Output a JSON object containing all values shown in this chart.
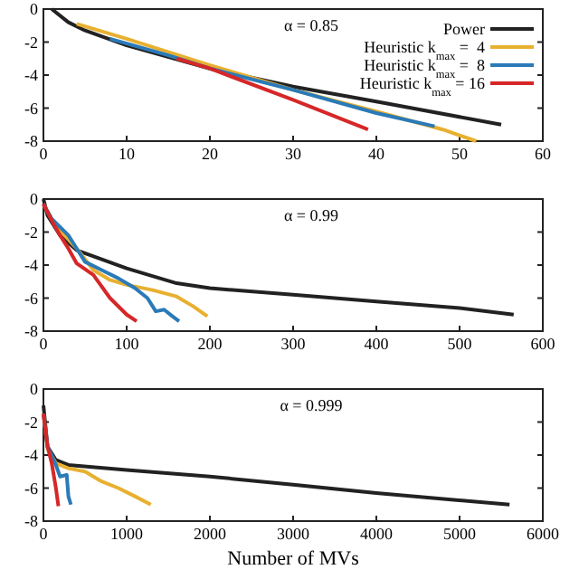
{
  "chart_data": [
    {
      "type": "line",
      "title": "α = 0.85",
      "xlim": [
        0,
        60
      ],
      "xticks": [
        0,
        10,
        20,
        30,
        40,
        50,
        60
      ],
      "ylim": [
        -8,
        0
      ],
      "yticks": [
        -8,
        -6,
        -4,
        -2,
        0
      ],
      "legend": "top right",
      "series": [
        {
          "name": "Power",
          "color": "#222222",
          "x": [
            1,
            3,
            5,
            10,
            20,
            30,
            40,
            55
          ],
          "values": [
            0,
            -0.8,
            -1.3,
            -2.2,
            -3.6,
            -4.7,
            -5.6,
            -7.0
          ]
        },
        {
          "name": "Heuristic k$_{max}$ =  4",
          "color": "#e8b030",
          "x": [
            4,
            10,
            20,
            30,
            40,
            48,
            52
          ],
          "values": [
            -0.9,
            -1.8,
            -3.4,
            -4.9,
            -6.2,
            -7.3,
            -8
          ]
        },
        {
          "name": "Heuristic k$_{max}$ =  8",
          "color": "#2a7ab8",
          "x": [
            8,
            15,
            20,
            30,
            40,
            47
          ],
          "values": [
            -1.8,
            -2.8,
            -3.6,
            -4.9,
            -6.3,
            -7.1
          ]
        },
        {
          "name": "Heuristic k$_{max}$ = 16",
          "color": "#d62728",
          "x": [
            16,
            20,
            30,
            39
          ],
          "values": [
            -3.0,
            -3.6,
            -5.5,
            -7.3
          ]
        }
      ]
    },
    {
      "type": "line",
      "title": "α = 0.99",
      "xlim": [
        0,
        600
      ],
      "xticks": [
        0,
        100,
        200,
        300,
        400,
        500,
        600
      ],
      "ylim": [
        -8,
        0
      ],
      "yticks": [
        -8,
        -6,
        -4,
        -2,
        0
      ],
      "series": [
        {
          "color": "#222222",
          "x": [
            0,
            5,
            20,
            40,
            100,
            160,
            200,
            300,
            400,
            500,
            565
          ],
          "values": [
            0,
            -1,
            -2.2,
            -3.1,
            -4.2,
            -5.1,
            -5.4,
            -5.8,
            -6.2,
            -6.6,
            -7.0
          ]
        },
        {
          "color": "#e8b030",
          "x": [
            0,
            10,
            20,
            40,
            60,
            80,
            100,
            130,
            160,
            180,
            197
          ],
          "values": [
            -0.3,
            -1.2,
            -1.9,
            -3.0,
            -4.3,
            -4.9,
            -5.2,
            -5.5,
            -5.9,
            -6.5,
            -7.1
          ]
        },
        {
          "color": "#2a7ab8",
          "x": [
            0,
            10,
            30,
            40,
            50,
            70,
            90,
            110,
            125,
            135,
            145,
            155,
            163
          ],
          "values": [
            -0.3,
            -1.2,
            -2.2,
            -3,
            -3.8,
            -4.3,
            -4.8,
            -5.4,
            -6.0,
            -6.8,
            -6.7,
            -7.1,
            -7.4
          ]
        },
        {
          "color": "#d62728",
          "x": [
            0,
            10,
            20,
            30,
            40,
            60,
            80,
            100,
            112
          ],
          "values": [
            -0.3,
            -1.3,
            -2.2,
            -3.0,
            -3.9,
            -4.6,
            -6.0,
            -7.0,
            -7.4
          ]
        }
      ]
    },
    {
      "type": "line",
      "title": "α = 0.999",
      "xlabel": "Number of MVs",
      "xlim": [
        0,
        6000
      ],
      "xticks": [
        0,
        1000,
        2000,
        3000,
        4000,
        5000,
        6000
      ],
      "ylim": [
        -8,
        0
      ],
      "yticks": [
        -8,
        -6,
        -4,
        -2,
        0
      ],
      "series": [
        {
          "color": "#222222",
          "x": [
            0,
            50,
            150,
            300,
            1000,
            2000,
            3000,
            4000,
            5600
          ],
          "values": [
            -1,
            -3.5,
            -4.3,
            -4.6,
            -4.9,
            -5.3,
            -5.8,
            -6.3,
            -7.0
          ]
        },
        {
          "color": "#e8b030",
          "x": [
            0,
            50,
            150,
            300,
            500,
            700,
            900,
            1100,
            1290
          ],
          "values": [
            -1.5,
            -3.6,
            -4.5,
            -4.8,
            -5.0,
            -5.6,
            -6.0,
            -6.5,
            -7.0
          ]
        },
        {
          "color": "#2a7ab8",
          "x": [
            0,
            50,
            150,
            200,
            280,
            300,
            330
          ],
          "values": [
            -1.5,
            -3.5,
            -4.6,
            -5.3,
            -5.2,
            -6.5,
            -7.0
          ]
        },
        {
          "color": "#d62728",
          "x": [
            0,
            50,
            100,
            150,
            180
          ],
          "values": [
            -1.5,
            -3.5,
            -4.5,
            -6.0,
            -7.1
          ]
        }
      ]
    }
  ]
}
